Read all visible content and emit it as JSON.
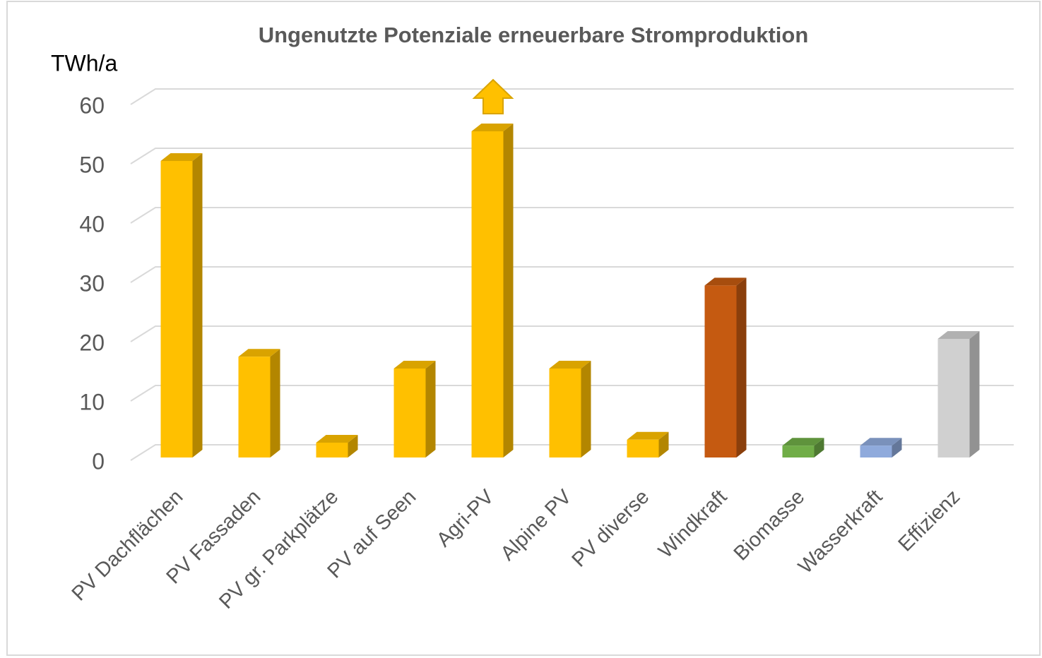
{
  "chart_data": {
    "type": "bar3d",
    "title": "Ungenutzte Potenziale erneuerbare Stromproduktion",
    "y_label": "TWh/a",
    "categories": [
      "PV Dachflächen",
      "PV Fassaden",
      "PV gr. Parkplätze",
      "PV auf Seen",
      "Agri-PV",
      "Alpine PV",
      "PV diverse",
      "Windkraft",
      "Biomasse",
      "Wasserkraft",
      "Effizienz"
    ],
    "values": [
      50,
      17,
      2.5,
      15,
      55,
      15,
      3,
      29,
      2,
      2,
      20
    ],
    "colors": [
      "#FFC000",
      "#FFC000",
      "#FFC000",
      "#FFC000",
      "#FFC000",
      "#FFC000",
      "#FFC000",
      "#C55A11",
      "#70AD47",
      "#8FAADC",
      "#D0D0D0"
    ],
    "ylim": [
      0,
      60
    ],
    "yticks": [
      0,
      10,
      20,
      30,
      40,
      50,
      60
    ],
    "grid": true
  }
}
